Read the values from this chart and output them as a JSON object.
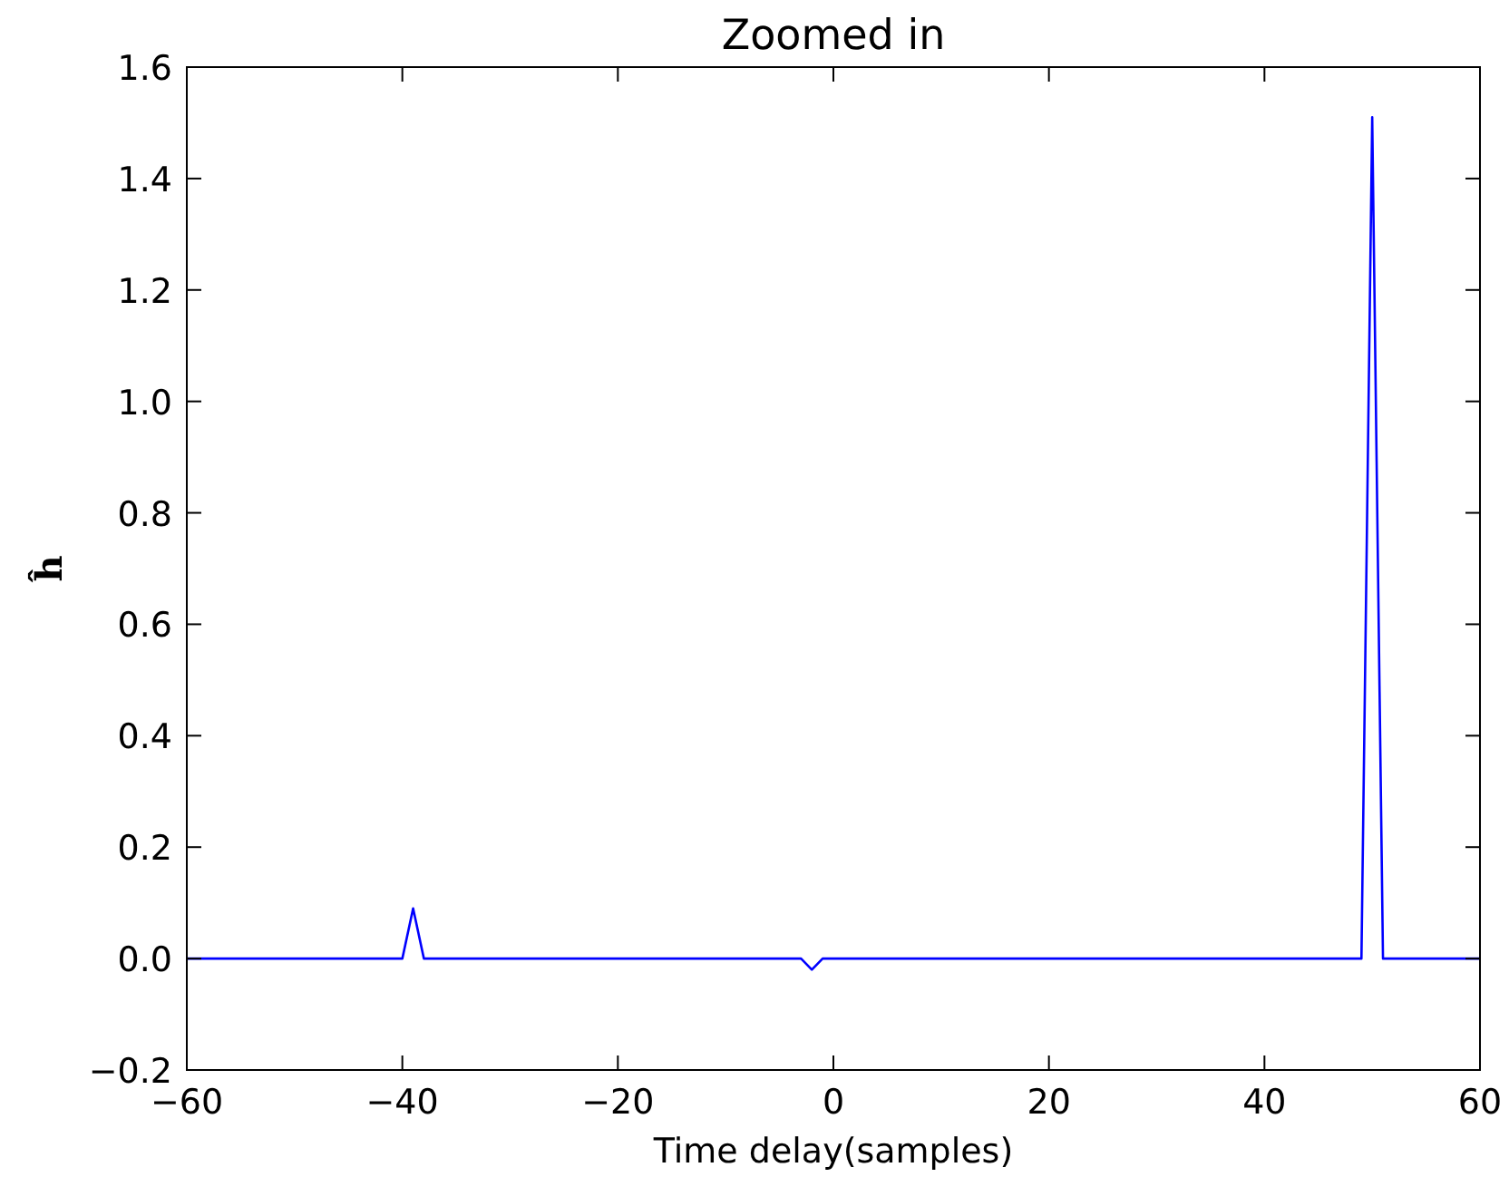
{
  "chart_data": {
    "type": "line",
    "title": "Zoomed in",
    "xlabel": "Time delay(samples)",
    "ylabel": "ĥ",
    "x": [
      -60,
      -40,
      -39,
      -38,
      -3,
      -2,
      -1,
      49,
      50,
      51,
      60
    ],
    "series": [
      {
        "color": "#0000ff",
        "values": [
          0,
          0,
          0.09,
          0,
          0,
          -0.02,
          0,
          0,
          1.51,
          0,
          0
        ]
      }
    ],
    "xlim": [
      -60,
      60
    ],
    "xticks": [
      -60,
      -40,
      -20,
      0,
      20,
      40,
      60
    ],
    "ylim": [
      -0.2,
      1.6
    ],
    "yticks": [
      {
        "value": -0.2,
        "label": "−0.2"
      },
      {
        "value": 0,
        "label": "0.0"
      },
      {
        "value": 0.2,
        "label": "0.2"
      },
      {
        "value": 0.4,
        "label": "0.4"
      },
      {
        "value": 0.6,
        "label": "0.6"
      },
      {
        "value": 0.8,
        "label": "0.8"
      },
      {
        "value": 1.0,
        "label": "1.0"
      },
      {
        "value": 1.2,
        "label": "1.2"
      },
      {
        "value": 1.4,
        "label": "1.4"
      },
      {
        "value": 1.6,
        "label": "1.6"
      }
    ],
    "grid": false,
    "marker": "none",
    "line_style": "solid"
  }
}
